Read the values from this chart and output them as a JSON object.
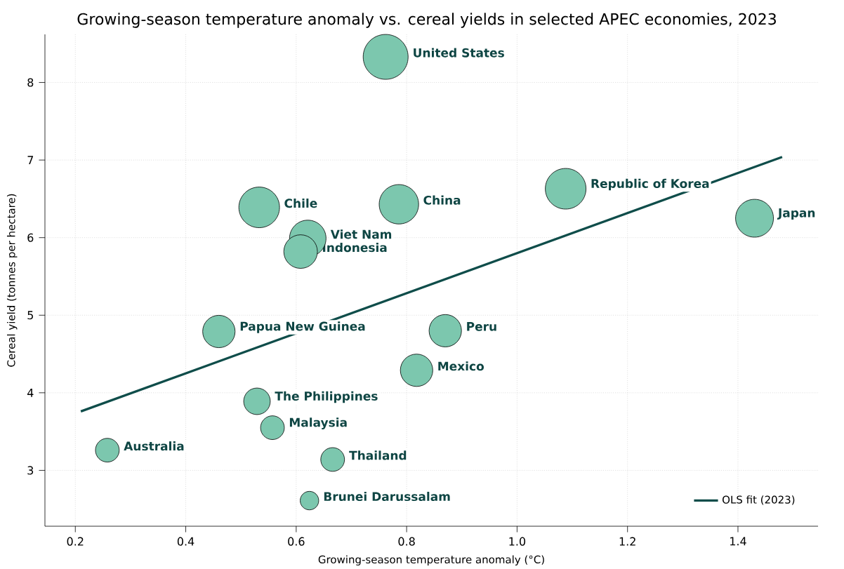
{
  "chart_data": {
    "type": "bubble",
    "title": "Growing-season temperature anomaly vs. cereal yields in selected APEC economies, 2023",
    "xlabel": "Growing-season temperature anomaly (°C)",
    "ylabel": "Cereal yield (tonnes per hectare)",
    "series": [
      {
        "color": "#7cc7ae",
        "x": [
          0.762,
          0.533,
          0.786,
          0.621,
          0.608,
          1.088,
          1.43,
          0.46,
          0.87,
          0.818,
          0.529,
          0.557,
          0.258,
          0.666,
          0.624
        ],
        "values": [
          8.33,
          6.39,
          6.43,
          5.99,
          5.82,
          6.63,
          6.25,
          4.79,
          4.8,
          4.29,
          3.89,
          3.55,
          3.26,
          3.14,
          2.61
        ],
        "sizes": [
          1,
          0.82,
          0.77,
          0.66,
          0.56,
          0.82,
          0.71,
          0.52,
          0.52,
          0.52,
          0.35,
          0.28,
          0.28,
          0.28,
          0.17
        ]
      },
      {
        "type": "line",
        "name": "OLS fit (2023)",
        "color": "#0f4d4a",
        "x": [
          0.21,
          1.48
        ],
        "values": [
          3.76,
          7.04
        ]
      }
    ],
    "annotations": [
      {
        "text": "United States",
        "x": 0.762,
        "y": 8.33
      },
      {
        "text": "Chile",
        "x": 0.533,
        "y": 6.39
      },
      {
        "text": "China",
        "x": 0.786,
        "y": 6.43
      },
      {
        "text": "Viet Nam",
        "x": 0.621,
        "y": 5.99
      },
      {
        "text": "Indonesia",
        "x": 0.608,
        "y": 5.82
      },
      {
        "text": "Republic of Korea",
        "x": 1.088,
        "y": 6.63
      },
      {
        "text": "Japan",
        "x": 1.43,
        "y": 6.25
      },
      {
        "text": "Papua New Guinea",
        "x": 0.46,
        "y": 4.79
      },
      {
        "text": "Peru",
        "x": 0.87,
        "y": 4.8
      },
      {
        "text": "Mexico",
        "x": 0.818,
        "y": 4.29
      },
      {
        "text": "The Philippines",
        "x": 0.529,
        "y": 3.89
      },
      {
        "text": "Malaysia",
        "x": 0.557,
        "y": 3.55
      },
      {
        "text": "Australia",
        "x": 0.258,
        "y": 3.26
      },
      {
        "text": "Thailand",
        "x": 0.666,
        "y": 3.14
      },
      {
        "text": "Brunei Darussalam",
        "x": 0.624,
        "y": 2.61
      }
    ],
    "xlim": [
      0.145,
      1.545
    ],
    "ylim": [
      2.28,
      8.62
    ],
    "xticks": [
      0.2,
      0.4,
      0.6,
      0.8,
      {
        "value": 1,
        "label": "1.0"
      },
      1.2,
      1.4
    ],
    "yticks": [
      3,
      4,
      5,
      6,
      7,
      8
    ],
    "grid": true,
    "legend": "bottom right",
    "line_style": "solid"
  }
}
